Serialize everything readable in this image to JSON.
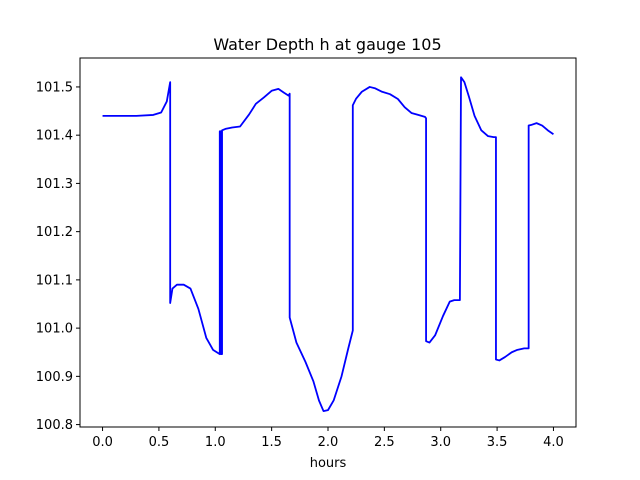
{
  "chart_data": {
    "type": "line",
    "title": "Water Depth h at gauge 105",
    "xlabel": "hours",
    "ylabel": "",
    "xlim": [
      -0.2,
      4.2
    ],
    "ylim": [
      100.795,
      101.56
    ],
    "xticks": [
      0.0,
      0.5,
      1.0,
      1.5,
      2.0,
      2.5,
      3.0,
      3.5,
      4.0
    ],
    "xtick_labels": [
      "0.0",
      "0.5",
      "1.0",
      "1.5",
      "2.0",
      "2.5",
      "3.0",
      "3.5",
      "4.0"
    ],
    "yticks": [
      100.8,
      100.9,
      101.0,
      101.1,
      101.2,
      101.3,
      101.4,
      101.5
    ],
    "ytick_labels": [
      "100.8",
      "100.9",
      "101.0",
      "101.1",
      "101.2",
      "101.3",
      "101.4",
      "101.5"
    ],
    "grid": false,
    "series": [
      {
        "color": "#0000ff",
        "x": [
          0.0,
          0.3,
          0.45,
          0.52,
          0.57,
          0.6,
          0.6,
          0.62,
          0.66,
          0.72,
          0.78,
          0.85,
          0.92,
          0.98,
          1.04,
          1.04,
          1.05,
          1.05,
          1.06,
          1.06,
          1.09,
          1.15,
          1.22,
          1.3,
          1.36,
          1.43,
          1.5,
          1.56,
          1.61,
          1.65,
          1.66,
          1.66,
          1.72,
          1.8,
          1.87,
          1.92,
          1.96,
          2.0,
          2.05,
          2.12,
          2.18,
          2.22,
          2.22,
          2.25,
          2.3,
          2.37,
          2.42,
          2.48,
          2.55,
          2.62,
          2.68,
          2.74,
          2.8,
          2.86,
          2.87,
          2.87,
          2.9,
          2.95,
          3.02,
          3.08,
          3.12,
          3.17,
          3.18,
          3.18,
          3.21,
          3.25,
          3.3,
          3.36,
          3.42,
          3.47,
          3.49,
          3.49,
          3.52,
          3.57,
          3.63,
          3.68,
          3.74,
          3.78,
          3.78,
          3.8,
          3.85,
          3.9,
          3.95,
          4.0
        ],
        "y": [
          101.44,
          101.44,
          101.442,
          101.447,
          101.47,
          101.51,
          101.052,
          101.082,
          101.09,
          101.09,
          101.082,
          101.04,
          100.98,
          100.955,
          100.946,
          101.408,
          101.408,
          100.946,
          100.946,
          101.41,
          101.413,
          101.416,
          101.418,
          101.443,
          101.465,
          101.478,
          101.492,
          101.496,
          101.488,
          101.482,
          101.486,
          101.022,
          100.97,
          100.93,
          100.89,
          100.85,
          100.828,
          100.83,
          100.85,
          100.9,
          100.958,
          100.995,
          101.462,
          101.476,
          101.49,
          101.5,
          101.497,
          101.49,
          101.485,
          101.475,
          101.458,
          101.446,
          101.442,
          101.438,
          101.435,
          100.973,
          100.97,
          100.985,
          101.025,
          101.055,
          101.058,
          101.058,
          101.52,
          101.52,
          101.51,
          101.48,
          101.44,
          101.41,
          101.398,
          101.396,
          101.396,
          100.935,
          100.933,
          100.94,
          100.95,
          100.955,
          100.958,
          100.958,
          101.42,
          101.421,
          101.425,
          101.42,
          101.41,
          101.402
        ]
      }
    ]
  }
}
